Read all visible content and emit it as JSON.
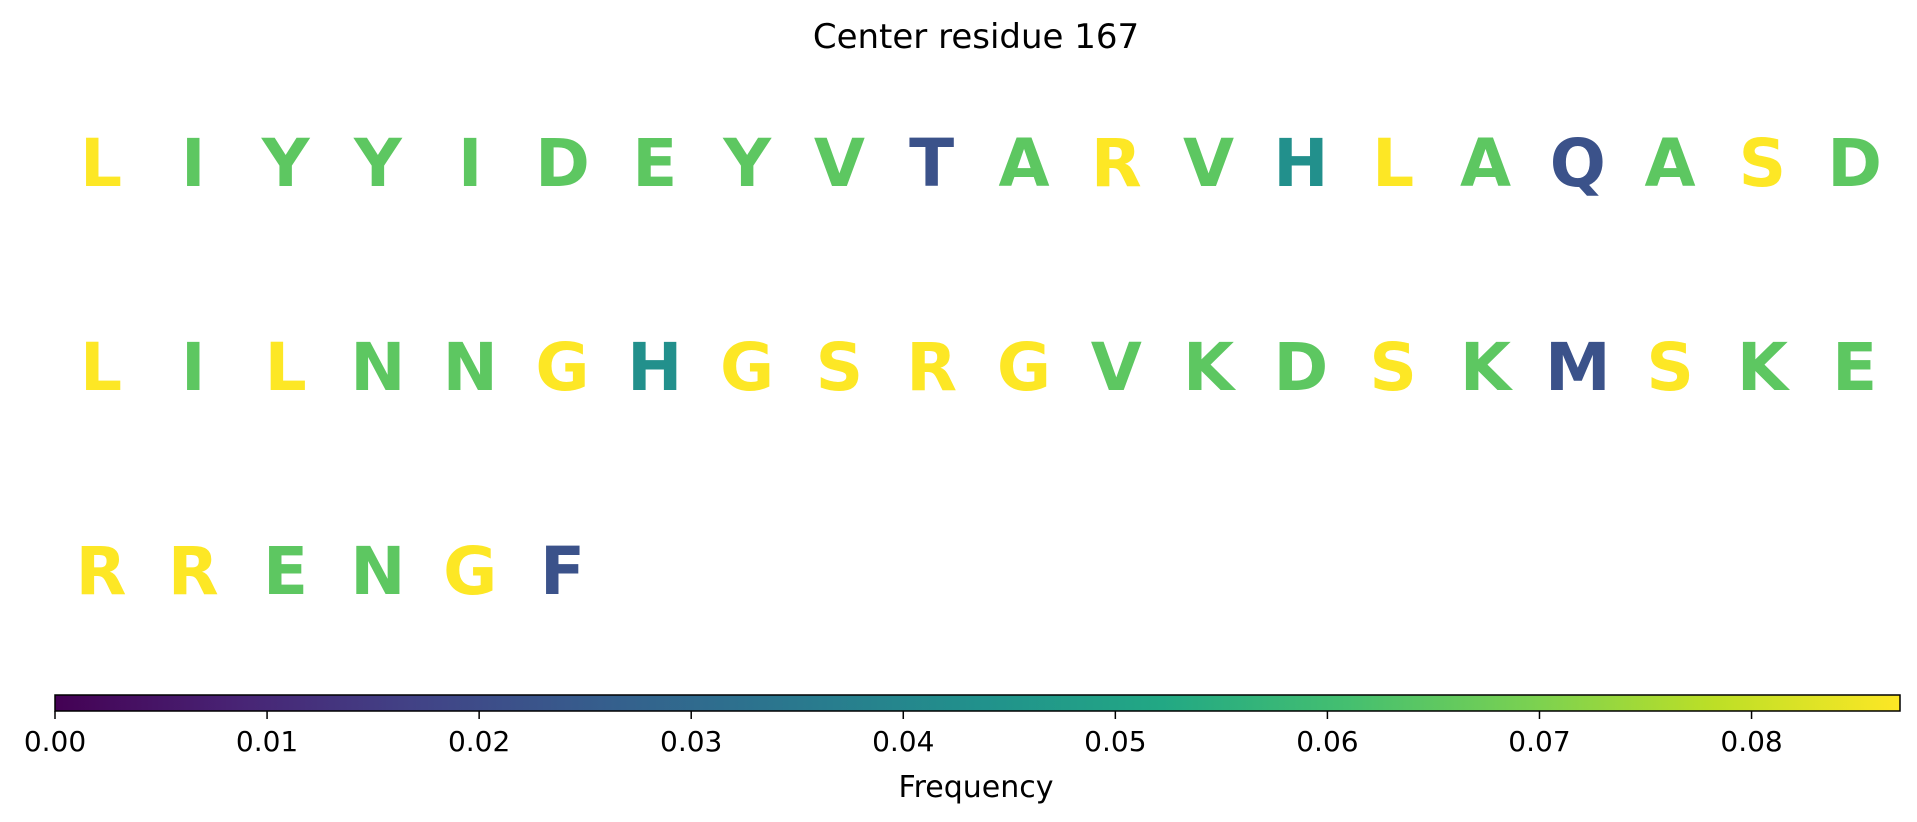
{
  "chart_data": {
    "type": "heatmap",
    "title": "Center residue 167",
    "colormap": "viridis",
    "colorbar": {
      "label": "Frequency",
      "range": [
        0,
        0.087
      ],
      "ticks": [
        "0.00",
        "0.01",
        "0.02",
        "0.03",
        "0.04",
        "0.05",
        "0.06",
        "0.07",
        "0.08"
      ]
    },
    "rows": [
      [
        {
          "residue": "L",
          "value": 0.087
        },
        {
          "residue": "I",
          "value": 0.065
        },
        {
          "residue": "Y",
          "value": 0.065
        },
        {
          "residue": "Y",
          "value": 0.065
        },
        {
          "residue": "I",
          "value": 0.065
        },
        {
          "residue": "D",
          "value": 0.065
        },
        {
          "residue": "E",
          "value": 0.065
        },
        {
          "residue": "Y",
          "value": 0.065
        },
        {
          "residue": "V",
          "value": 0.065
        },
        {
          "residue": "T",
          "value": 0.022
        },
        {
          "residue": "A",
          "value": 0.065
        },
        {
          "residue": "R",
          "value": 0.087
        },
        {
          "residue": "V",
          "value": 0.065
        },
        {
          "residue": "H",
          "value": 0.043
        },
        {
          "residue": "L",
          "value": 0.087
        },
        {
          "residue": "A",
          "value": 0.065
        },
        {
          "residue": "Q",
          "value": 0.022
        },
        {
          "residue": "A",
          "value": 0.065
        },
        {
          "residue": "S",
          "value": 0.087
        },
        {
          "residue": "D",
          "value": 0.065
        }
      ],
      [
        {
          "residue": "L",
          "value": 0.087
        },
        {
          "residue": "I",
          "value": 0.065
        },
        {
          "residue": "L",
          "value": 0.087
        },
        {
          "residue": "N",
          "value": 0.065
        },
        {
          "residue": "N",
          "value": 0.065
        },
        {
          "residue": "G",
          "value": 0.087
        },
        {
          "residue": "H",
          "value": 0.043
        },
        {
          "residue": "G",
          "value": 0.087
        },
        {
          "residue": "S",
          "value": 0.087
        },
        {
          "residue": "R",
          "value": 0.087
        },
        {
          "residue": "G",
          "value": 0.087
        },
        {
          "residue": "V",
          "value": 0.065
        },
        {
          "residue": "K",
          "value": 0.065
        },
        {
          "residue": "D",
          "value": 0.065
        },
        {
          "residue": "S",
          "value": 0.087
        },
        {
          "residue": "K",
          "value": 0.065
        },
        {
          "residue": "M",
          "value": 0.022
        },
        {
          "residue": "S",
          "value": 0.087
        },
        {
          "residue": "K",
          "value": 0.065
        },
        {
          "residue": "E",
          "value": 0.065
        }
      ],
      [
        {
          "residue": "R",
          "value": 0.087
        },
        {
          "residue": "R",
          "value": 0.087
        },
        {
          "residue": "E",
          "value": 0.065
        },
        {
          "residue": "N",
          "value": 0.065
        },
        {
          "residue": "G",
          "value": 0.087
        },
        {
          "residue": "F",
          "value": 0.022
        }
      ]
    ]
  }
}
